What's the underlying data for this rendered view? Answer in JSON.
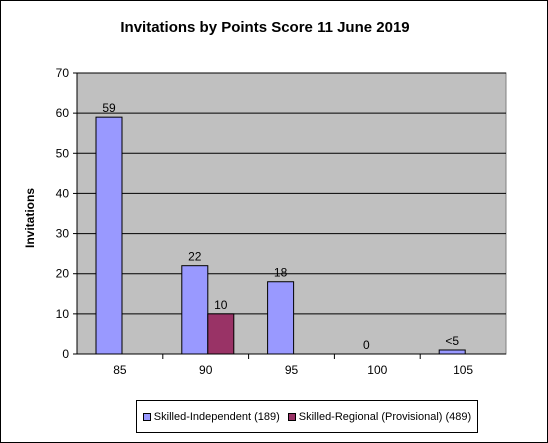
{
  "chart_data": {
    "type": "bar",
    "title": "Invitations by Points Score 11 June 2019",
    "xlabel": "",
    "ylabel": "Invitations",
    "categories": [
      "85",
      "90",
      "95",
      "100",
      "105"
    ],
    "ylim": [
      0,
      70
    ],
    "yticks": [
      "0",
      "10",
      "20",
      "30",
      "40",
      "50",
      "60",
      "70"
    ],
    "grid": true,
    "plot_background": "#c0c0c0",
    "legend_position": "bottom",
    "series": [
      {
        "name": "Skilled-Independent (189)",
        "color": "#9999ff",
        "values": [
          59,
          22,
          18,
          0,
          1
        ],
        "labels": [
          "59",
          "22",
          "18",
          "0",
          "<5"
        ]
      },
      {
        "name": "Skilled-Regional (Provisional) (489)",
        "color": "#993366",
        "values": [
          0,
          10,
          0,
          0,
          0
        ],
        "labels": [
          "",
          "10",
          "",
          "",
          ""
        ]
      }
    ]
  }
}
